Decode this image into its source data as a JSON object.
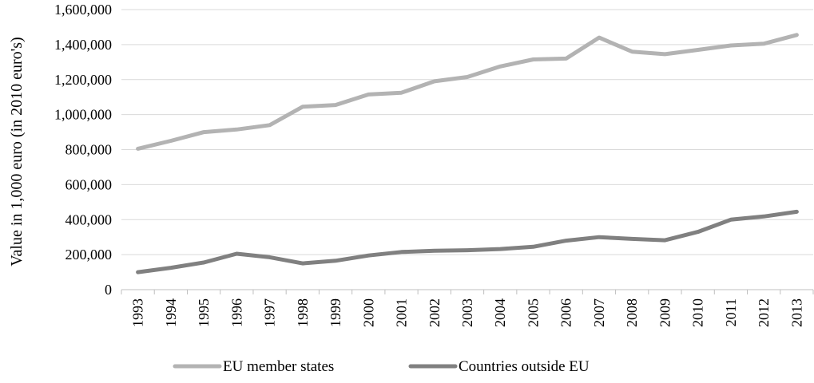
{
  "chart_data": {
    "type": "line",
    "title": "",
    "xlabel": "",
    "ylabel": "Value in 1,000 euro (in 2010 euro's)",
    "x": [
      "1993",
      "1994",
      "1995",
      "1996",
      "1997",
      "1998",
      "1999",
      "2000",
      "2001",
      "2002",
      "2003",
      "2004",
      "2005",
      "2006",
      "2007",
      "2008",
      "2009",
      "2010",
      "2011",
      "2012",
      "2013"
    ],
    "ylim": [
      0,
      1600000
    ],
    "yticks": [
      0,
      200000,
      400000,
      600000,
      800000,
      1000000,
      1200000,
      1400000,
      1600000
    ],
    "ytick_labels": [
      "0",
      "200,000",
      "400,000",
      "600,000",
      "800,000",
      "1,000,000",
      "1,200,000",
      "1,400,000",
      "1,600,000"
    ],
    "grid": "horizontal",
    "legend_position": "bottom",
    "series": [
      {
        "name": "EU member states",
        "color": "#b3b3b3",
        "values": [
          805000,
          850000,
          900000,
          915000,
          940000,
          1045000,
          1055000,
          1115000,
          1125000,
          1190000,
          1215000,
          1275000,
          1315000,
          1320000,
          1440000,
          1360000,
          1345000,
          1370000,
          1395000,
          1405000,
          1455000
        ]
      },
      {
        "name": "Countries outside EU",
        "color": "#808080",
        "values": [
          100000,
          125000,
          155000,
          205000,
          185000,
          150000,
          165000,
          195000,
          215000,
          222000,
          225000,
          232000,
          245000,
          280000,
          300000,
          290000,
          282000,
          330000,
          400000,
          418000,
          445000
        ]
      }
    ]
  }
}
